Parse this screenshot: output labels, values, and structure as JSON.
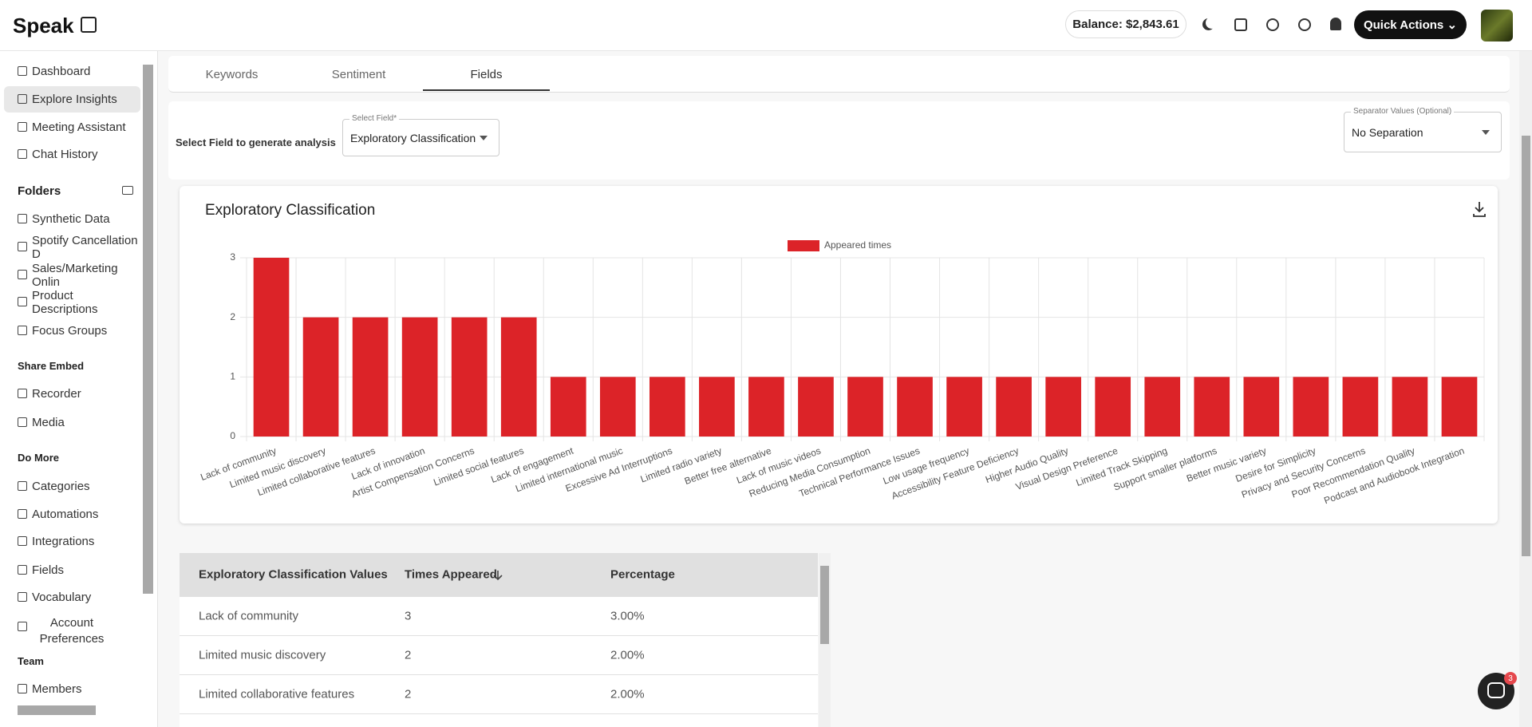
{
  "header": {
    "logo": "Speak",
    "balance": "Balance: $2,843.61",
    "quick_actions": "Quick Actions"
  },
  "sidebar": {
    "nav": [
      "Dashboard",
      "Explore Insights",
      "Meeting Assistant",
      "Chat History"
    ],
    "folders_title": "Folders",
    "folders": [
      "Synthetic Data",
      "Spotify Cancellation D",
      "Sales/Marketing Onlin",
      "Product Descriptions",
      "Focus Groups"
    ],
    "share_title": "Share Embed",
    "share": [
      "Recorder",
      "Media"
    ],
    "more_title": "Do More",
    "more": [
      "Categories",
      "Automations",
      "Integrations",
      "Fields",
      "Vocabulary",
      "Account Preferences"
    ],
    "team_title": "Team",
    "team": [
      "Members"
    ]
  },
  "tabs": [
    "Keywords",
    "Sentiment",
    "Fields"
  ],
  "field_select": {
    "prompt": "Select Field to generate analysis",
    "label": "Select Field*",
    "value": "Exploratory Classification"
  },
  "separator_select": {
    "label": "Separator Values (Optional)",
    "value": "No Separation"
  },
  "chart_data": {
    "type": "bar",
    "title": "Exploratory Classification",
    "categories": [
      "Lack of community",
      "Limited music discovery",
      "Limited collaborative features",
      "Lack of innovation",
      "Artist Compensation Concerns",
      "Limited social features",
      "Lack of engagement",
      "Limited international music",
      "Excessive Ad Interruptions",
      "Limited radio variety",
      "Better free alternative",
      "Lack of music videos",
      "Reducing Media Consumption",
      "Technical Performance Issues",
      "Low usage frequency",
      "Accessibility Feature Deficiency",
      "Higher Audio Quality",
      "Visual Design Preference",
      "Limited Track Skipping",
      "Support smaller platforms",
      "Better music variety",
      "Desire for Simplicity",
      "Privacy and Security Concerns",
      "Poor Recommendation Quality",
      "Podcast and Audiobook Integration"
    ],
    "series": [
      {
        "name": "Appeared times",
        "color": "#dc2328",
        "values": [
          3,
          2,
          2,
          2,
          2,
          2,
          1,
          1,
          1,
          1,
          1,
          1,
          1,
          1,
          1,
          1,
          1,
          1,
          1,
          1,
          1,
          1,
          1,
          1,
          1
        ]
      }
    ],
    "ylim": [
      0,
      3
    ],
    "yticks": [
      0,
      1,
      2,
      3
    ],
    "grid": true
  },
  "table": {
    "columns": [
      "Exploratory Classification Values",
      "Times Appeared",
      "Percentage"
    ],
    "rows": [
      [
        "Lack of community",
        3,
        "3.00%"
      ],
      [
        "Limited music discovery",
        2,
        "2.00%"
      ],
      [
        "Limited collaborative features",
        2,
        "2.00%"
      ]
    ]
  },
  "chat_badge": 3
}
